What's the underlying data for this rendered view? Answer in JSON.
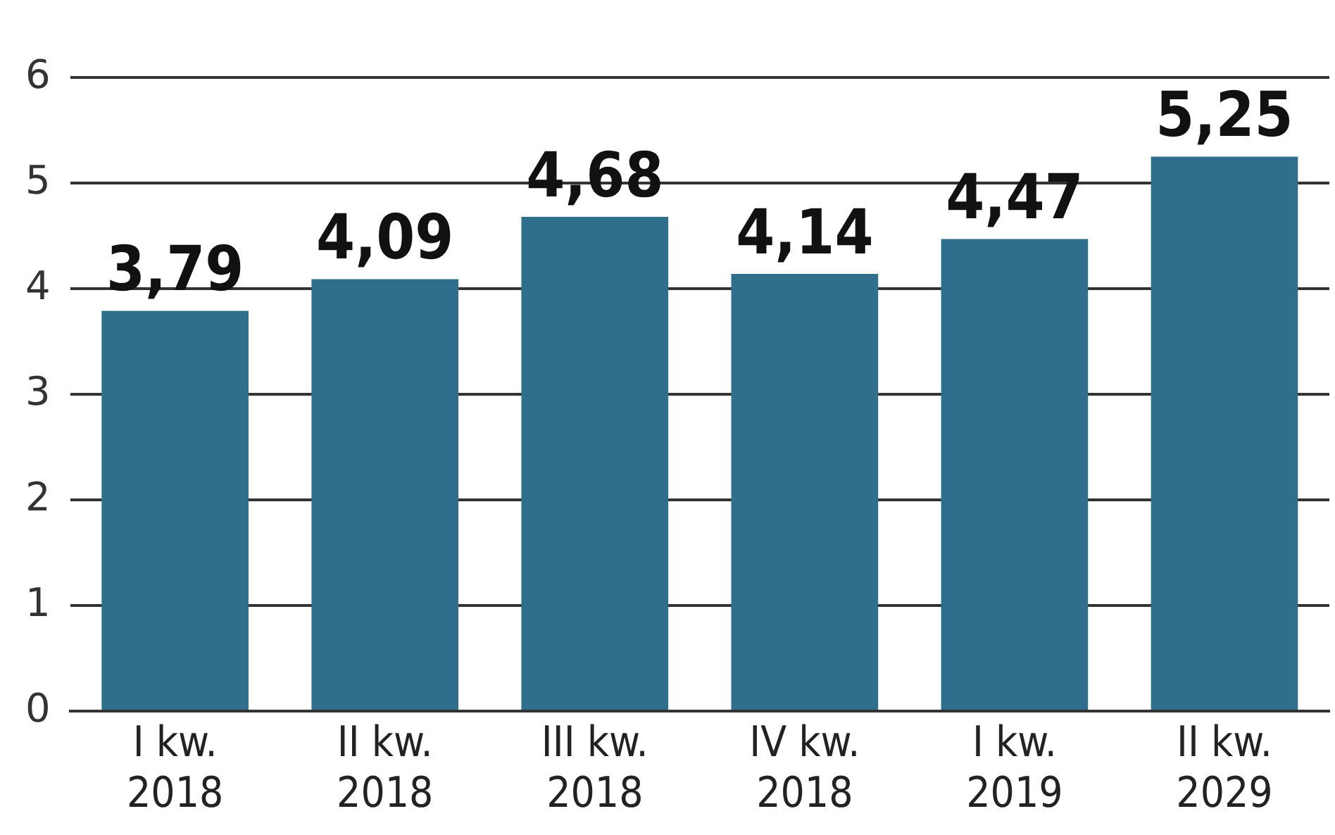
{
  "chart_data": {
    "type": "bar",
    "categories": [
      "I kw.\n2018",
      "II kw.\n2018",
      "III kw.\n2018",
      "IV kw.\n2018",
      "I kw.\n2019",
      "II kw.\n2029"
    ],
    "values": [
      3.79,
      4.09,
      4.68,
      4.14,
      4.47,
      5.25
    ],
    "value_labels": [
      "3,79",
      "4,09",
      "4,68",
      "4,14",
      "4,47",
      "5,25"
    ],
    "color": "#2f6f8c",
    "ylim": [
      0,
      6
    ],
    "yticks": [
      0,
      1,
      2,
      3,
      4,
      5,
      6
    ],
    "grid": "y",
    "legend": false
  }
}
